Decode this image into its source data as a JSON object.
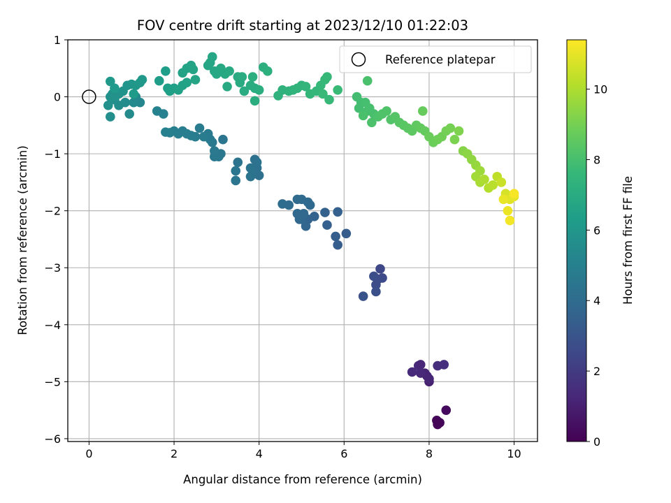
{
  "chart_data": {
    "type": "scatter",
    "title": "FOV centre drift starting at 2023/12/10 01:22:03",
    "xlabel": "Angular distance from reference (arcmin)",
    "ylabel": "Rotation from reference (arcmin)",
    "xlim": [
      -0.5,
      10.55
    ],
    "ylim": [
      -6.05,
      1.0
    ],
    "xticks": [
      0,
      2,
      4,
      6,
      8,
      10
    ],
    "yticks": [
      1,
      0,
      -1,
      -2,
      -3,
      -4,
      -5,
      -6
    ],
    "grid": true,
    "legend": {
      "placement": "top-right",
      "entries": [
        "Reference platepar"
      ]
    },
    "reference_point": {
      "x": 0,
      "y": 0
    },
    "colorbar": {
      "label": "Hours from first FF file",
      "range": [
        0,
        11.4
      ],
      "ticks": [
        0,
        2,
        4,
        6,
        8,
        10
      ],
      "colormap": "viridis"
    },
    "colormap_stops": [
      "#440154",
      "#482878",
      "#3e4989",
      "#31688e",
      "#26828e",
      "#1f9e89",
      "#35b779",
      "#6ece58",
      "#b5de2b",
      "#fde725"
    ],
    "points": [
      [
        8.2,
        -5.7,
        0.0
      ],
      [
        8.2,
        -5.75,
        0.05
      ],
      [
        8.25,
        -5.72,
        0.1
      ],
      [
        8.18,
        -5.68,
        0.12
      ],
      [
        8.4,
        -5.5,
        0.3
      ],
      [
        8.0,
        -5.0,
        1.0
      ],
      [
        7.9,
        -4.85,
        1.1
      ],
      [
        7.95,
        -4.9,
        1.15
      ],
      [
        8.0,
        -4.95,
        1.2
      ],
      [
        7.8,
        -4.85,
        1.3
      ],
      [
        7.75,
        -4.72,
        1.35
      ],
      [
        7.6,
        -4.83,
        1.4
      ],
      [
        8.2,
        -4.72,
        1.5
      ],
      [
        8.35,
        -4.7,
        1.55
      ],
      [
        7.8,
        -4.7,
        1.25
      ],
      [
        6.85,
        -3.02,
        2.5
      ],
      [
        6.9,
        -3.18,
        2.55
      ],
      [
        6.8,
        -3.2,
        2.6
      ],
      [
        6.75,
        -3.3,
        2.7
      ],
      [
        6.7,
        -3.15,
        2.75
      ],
      [
        6.75,
        -3.42,
        2.8
      ],
      [
        6.45,
        -3.5,
        2.9
      ],
      [
        6.05,
        -2.4,
        3.3
      ],
      [
        5.85,
        -2.6,
        3.35
      ],
      [
        5.8,
        -2.45,
        3.4
      ],
      [
        5.6,
        -2.25,
        3.45
      ],
      [
        5.85,
        -2.02,
        3.5
      ],
      [
        5.55,
        -2.03,
        3.55
      ],
      [
        5.3,
        -2.1,
        3.6
      ],
      [
        5.15,
        -2.15,
        3.65
      ],
      [
        5.1,
        -2.27,
        3.7
      ],
      [
        5.0,
        -2.15,
        3.75
      ],
      [
        4.9,
        -2.05,
        3.8
      ],
      [
        4.95,
        -2.15,
        3.82
      ],
      [
        5.05,
        -2.05,
        3.85
      ],
      [
        5.15,
        -1.85,
        3.9
      ],
      [
        5.0,
        -1.8,
        3.92
      ],
      [
        4.9,
        -1.8,
        3.95
      ],
      [
        4.7,
        -1.9,
        4.0
      ],
      [
        4.55,
        -1.88,
        4.05
      ],
      [
        5.2,
        -1.9,
        3.87
      ],
      [
        4.0,
        -1.38,
        4.2
      ],
      [
        3.95,
        -1.25,
        4.22
      ],
      [
        3.9,
        -1.1,
        4.25
      ],
      [
        3.95,
        -1.15,
        4.28
      ],
      [
        3.85,
        -1.3,
        4.3
      ],
      [
        3.8,
        -1.4,
        4.32
      ],
      [
        3.8,
        -1.25,
        4.35
      ],
      [
        3.5,
        -1.15,
        4.4
      ],
      [
        3.45,
        -1.3,
        4.42
      ],
      [
        3.45,
        -1.47,
        4.45
      ],
      [
        3.15,
        -0.75,
        4.5
      ],
      [
        3.1,
        -1.0,
        4.55
      ],
      [
        3.05,
        -1.05,
        4.58
      ],
      [
        2.95,
        -1.05,
        4.6
      ],
      [
        2.95,
        -0.95,
        4.62
      ],
      [
        2.9,
        -0.8,
        4.65
      ],
      [
        2.85,
        -0.75,
        4.68
      ],
      [
        2.8,
        -0.65,
        4.7
      ],
      [
        2.7,
        -0.7,
        4.72
      ],
      [
        2.6,
        -0.55,
        4.75
      ],
      [
        2.5,
        -0.7,
        4.78
      ],
      [
        2.4,
        -0.68,
        4.8
      ],
      [
        2.3,
        -0.65,
        4.82
      ],
      [
        2.2,
        -0.6,
        4.85
      ],
      [
        2.1,
        -0.65,
        4.88
      ],
      [
        2.0,
        -0.6,
        4.9
      ],
      [
        1.9,
        -0.63,
        4.92
      ],
      [
        1.8,
        -0.62,
        4.95
      ],
      [
        1.75,
        -0.3,
        5.0
      ],
      [
        1.6,
        -0.25,
        5.05
      ],
      [
        1.2,
        -0.1,
        5.3
      ],
      [
        1.1,
        0.0,
        5.35
      ],
      [
        1.05,
        -0.1,
        5.4
      ],
      [
        0.95,
        -0.3,
        5.45
      ],
      [
        0.85,
        -0.1,
        5.5
      ],
      [
        0.7,
        -0.15,
        5.55
      ],
      [
        0.6,
        -0.05,
        5.6
      ],
      [
        0.5,
        -0.35,
        5.65
      ],
      [
        0.45,
        -0.15,
        5.7
      ],
      [
        0.5,
        0.0,
        5.72
      ],
      [
        0.55,
        0.05,
        5.75
      ],
      [
        0.6,
        0.0,
        5.78
      ],
      [
        0.7,
        0.05,
        5.8
      ],
      [
        0.8,
        0.1,
        5.85
      ],
      [
        0.9,
        0.2,
        5.9
      ],
      [
        1.0,
        0.22,
        5.95
      ],
      [
        1.1,
        0.2,
        6.0
      ],
      [
        1.2,
        0.25,
        6.05
      ],
      [
        1.25,
        0.3,
        6.1
      ],
      [
        0.5,
        0.27,
        6.12
      ],
      [
        0.6,
        0.15,
        6.15
      ],
      [
        1.05,
        0.05,
        6.2
      ],
      [
        1.65,
        0.28,
        6.3
      ],
      [
        1.8,
        0.45,
        6.35
      ],
      [
        1.85,
        0.15,
        6.4
      ],
      [
        1.9,
        0.1,
        6.42
      ],
      [
        2.0,
        0.15,
        6.45
      ],
      [
        2.1,
        0.12,
        6.48
      ],
      [
        2.2,
        0.2,
        6.5
      ],
      [
        2.3,
        0.25,
        6.52
      ],
      [
        2.2,
        0.42,
        6.55
      ],
      [
        2.3,
        0.5,
        6.58
      ],
      [
        2.4,
        0.55,
        6.6
      ],
      [
        2.45,
        0.48,
        6.62
      ],
      [
        2.5,
        0.3,
        6.65
      ],
      [
        2.8,
        0.55,
        6.7
      ],
      [
        2.85,
        0.6,
        6.72
      ],
      [
        2.9,
        0.7,
        6.75
      ],
      [
        2.95,
        0.45,
        6.78
      ],
      [
        3.0,
        0.4,
        6.8
      ],
      [
        3.1,
        0.5,
        6.82
      ],
      [
        3.2,
        0.4,
        6.85
      ],
      [
        3.3,
        0.45,
        6.88
      ],
      [
        3.25,
        0.18,
        6.9
      ],
      [
        3.5,
        0.35,
        6.92
      ],
      [
        3.55,
        0.25,
        6.95
      ],
      [
        3.6,
        0.35,
        6.98
      ],
      [
        3.65,
        0.1,
        7.0
      ],
      [
        3.8,
        0.2,
        7.02
      ],
      [
        3.9,
        0.15,
        7.05
      ],
      [
        3.9,
        -0.07,
        7.08
      ],
      [
        4.0,
        0.12,
        7.1
      ],
      [
        3.85,
        0.35,
        7.12
      ],
      [
        4.1,
        0.52,
        7.15
      ],
      [
        4.2,
        0.45,
        7.18
      ],
      [
        4.45,
        0.02,
        7.3
      ],
      [
        4.55,
        0.12,
        7.32
      ],
      [
        4.7,
        0.1,
        7.35
      ],
      [
        4.8,
        0.12,
        7.38
      ],
      [
        4.9,
        0.15,
        7.4
      ],
      [
        5.0,
        0.2,
        7.42
      ],
      [
        5.1,
        0.18,
        7.45
      ],
      [
        5.2,
        0.05,
        7.5
      ],
      [
        5.35,
        0.1,
        7.55
      ],
      [
        5.45,
        0.2,
        7.58
      ],
      [
        5.55,
        0.3,
        7.6
      ],
      [
        5.6,
        0.35,
        7.62
      ],
      [
        5.65,
        -0.05,
        7.65
      ],
      [
        5.5,
        0.05,
        7.68
      ],
      [
        5.85,
        0.12,
        7.7
      ],
      [
        6.3,
        0.0,
        7.9
      ],
      [
        6.4,
        -0.1,
        7.92
      ],
      [
        6.35,
        -0.2,
        7.95
      ],
      [
        6.5,
        -0.1,
        7.98
      ],
      [
        6.55,
        -0.25,
        8.0
      ],
      [
        6.6,
        -0.2,
        8.02
      ],
      [
        6.7,
        -0.3,
        8.05
      ],
      [
        6.45,
        -0.33,
        8.08
      ],
      [
        6.55,
        0.28,
        8.1
      ],
      [
        6.65,
        -0.45,
        8.12
      ],
      [
        6.8,
        -0.35,
        8.15
      ],
      [
        6.9,
        -0.3,
        8.18
      ],
      [
        7.0,
        -0.25,
        8.2
      ],
      [
        7.1,
        -0.4,
        8.25
      ],
      [
        7.2,
        -0.35,
        8.3
      ],
      [
        7.3,
        -0.45,
        8.35
      ],
      [
        7.4,
        -0.5,
        8.4
      ],
      [
        7.5,
        -0.55,
        8.45
      ],
      [
        7.6,
        -0.6,
        8.5
      ],
      [
        7.7,
        -0.5,
        8.55
      ],
      [
        7.8,
        -0.55,
        8.6
      ],
      [
        7.9,
        -0.6,
        8.65
      ],
      [
        7.85,
        -0.25,
        8.7
      ],
      [
        8.0,
        -0.7,
        8.75
      ],
      [
        8.1,
        -0.8,
        8.8
      ],
      [
        8.2,
        -0.75,
        8.85
      ],
      [
        8.3,
        -0.7,
        8.9
      ],
      [
        8.4,
        -0.6,
        8.95
      ],
      [
        8.5,
        -0.55,
        9.0
      ],
      [
        8.6,
        -0.75,
        9.1
      ],
      [
        8.7,
        -0.6,
        9.15
      ],
      [
        8.8,
        -0.95,
        9.3
      ],
      [
        8.9,
        -1.0,
        9.4
      ],
      [
        9.0,
        -1.1,
        9.5
      ],
      [
        9.1,
        -1.2,
        9.6
      ],
      [
        9.2,
        -1.3,
        9.7
      ],
      [
        9.1,
        -1.4,
        9.8
      ],
      [
        9.2,
        -1.5,
        9.9
      ],
      [
        9.3,
        -1.45,
        10.0
      ],
      [
        9.4,
        -1.6,
        10.1
      ],
      [
        9.5,
        -1.55,
        10.2
      ],
      [
        9.6,
        -1.4,
        10.3
      ],
      [
        9.7,
        -1.5,
        10.5
      ],
      [
        9.8,
        -1.7,
        10.7
      ],
      [
        9.9,
        -1.8,
        10.9
      ],
      [
        10.0,
        -1.75,
        11.0
      ],
      [
        9.85,
        -2.0,
        11.1
      ],
      [
        9.9,
        -2.17,
        11.2
      ],
      [
        10.0,
        -1.7,
        11.3
      ],
      [
        9.75,
        -1.8,
        11.05
      ]
    ]
  }
}
